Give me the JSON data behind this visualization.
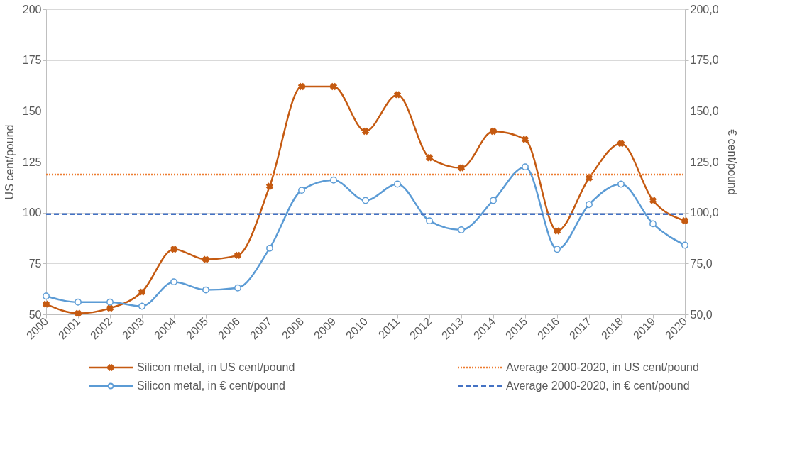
{
  "chart_data": {
    "type": "line",
    "ylabel": "US cent/pound",
    "y2label": "€ cent/pound",
    "categories": [
      "2000",
      "2001",
      "2002",
      "2003",
      "2004",
      "2005",
      "2006",
      "2007",
      "2008",
      "2009",
      "2010",
      "2011",
      "2012",
      "2013",
      "2014",
      "2015",
      "2016",
      "2017",
      "2018",
      "2019",
      "2020"
    ],
    "series": [
      {
        "name": "Silicon metal, in US cent/pound",
        "color": "#c55a11",
        "marker": "cross",
        "values": [
          55,
          50.5,
          53,
          61,
          82,
          77,
          79,
          113,
          162,
          162,
          140,
          158,
          127,
          122,
          140,
          136,
          91,
          117,
          134,
          106,
          96
        ]
      },
      {
        "name": "Silicon metal, in € cent/pound",
        "color": "#5b9bd5",
        "marker": "circle",
        "axis": "y2",
        "values": [
          59,
          56,
          56,
          54,
          66,
          62,
          63,
          82.5,
          111,
          116,
          106,
          114,
          96,
          91.5,
          106,
          122.5,
          82,
          104,
          114,
          94.5,
          84
        ]
      }
    ],
    "ref_lines": [
      {
        "axis": "y",
        "value": 118.7,
        "label": "Average 2000-2020, in US cent/pound",
        "color": "#ed7d31",
        "line_style": "dotted"
      },
      {
        "axis": "y2",
        "value": 99.3,
        "label": "Average 2000-2020, in € cent/pound",
        "color": "#4472c4",
        "line_style": "dashed"
      }
    ],
    "ylim": [
      50,
      200
    ],
    "yticks": [
      50,
      75,
      100,
      125,
      150,
      175,
      200
    ],
    "y2lim": [
      50,
      200
    ],
    "y2ticks": [
      {
        "value": 50,
        "label": "50,0"
      },
      {
        "value": 75,
        "label": "75,0"
      },
      {
        "value": 100,
        "label": "100,0"
      },
      {
        "value": 125,
        "label": "125,0"
      },
      {
        "value": 150,
        "label": "150,0"
      },
      {
        "value": 175,
        "label": "175,0"
      },
      {
        "value": 200,
        "label": "200,0"
      }
    ],
    "grid": "y",
    "legend": "bottom",
    "line_style": "solid"
  }
}
